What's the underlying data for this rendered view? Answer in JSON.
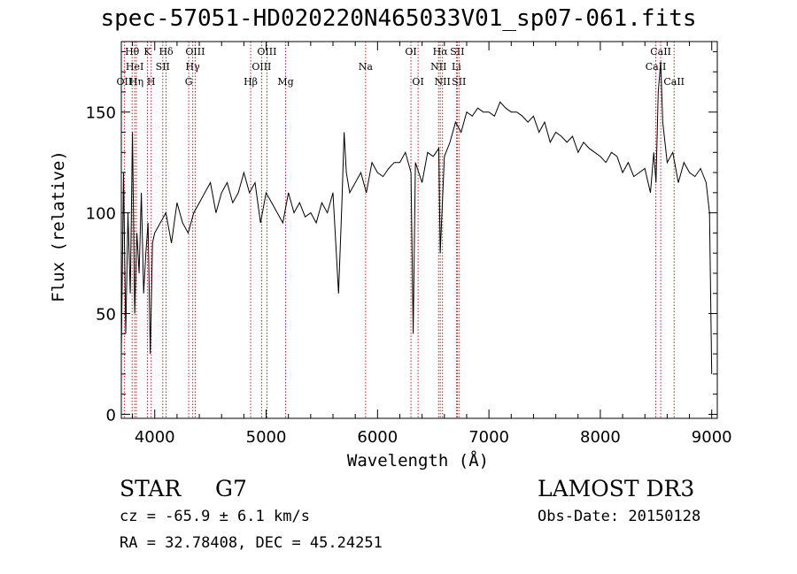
{
  "chart_data": {
    "type": "line",
    "title": "spec-57051-HD020220N465033V01_sp07-061.fits",
    "xlabel": "Wavelength (Å)",
    "ylabel": "Flux (relative)",
    "xlim": [
      3700,
      9050
    ],
    "ylim": [
      -2,
      185
    ],
    "xticks": [
      4000,
      5000,
      6000,
      7000,
      8000,
      9000
    ],
    "yticks": [
      0,
      50,
      100,
      150
    ],
    "series": [
      {
        "name": "flux",
        "x": [
          3700,
          3720,
          3740,
          3760,
          3780,
          3800,
          3820,
          3840,
          3860,
          3880,
          3900,
          3920,
          3940,
          3960,
          3980,
          4000,
          4050,
          4100,
          4150,
          4200,
          4250,
          4300,
          4350,
          4400,
          4450,
          4500,
          4550,
          4600,
          4650,
          4700,
          4750,
          4800,
          4850,
          4900,
          4950,
          5000,
          5050,
          5100,
          5150,
          5200,
          5250,
          5300,
          5350,
          5400,
          5450,
          5500,
          5550,
          5600,
          5650,
          5680,
          5700,
          5720,
          5750,
          5800,
          5850,
          5900,
          5950,
          6000,
          6050,
          6100,
          6150,
          6200,
          6250,
          6300,
          6320,
          6340,
          6400,
          6450,
          6500,
          6550,
          6563,
          6600,
          6650,
          6700,
          6750,
          6800,
          6850,
          6900,
          6950,
          7000,
          7050,
          7100,
          7150,
          7200,
          7250,
          7300,
          7350,
          7400,
          7450,
          7500,
          7550,
          7600,
          7650,
          7700,
          7750,
          7800,
          7850,
          7900,
          7950,
          8000,
          8050,
          8100,
          8150,
          8200,
          8250,
          8300,
          8350,
          8400,
          8450,
          8480,
          8500,
          8520,
          8542,
          8560,
          8600,
          8650,
          8700,
          8750,
          8800,
          8850,
          8900,
          8950,
          8980,
          9000
        ],
        "values": [
          30,
          120,
          40,
          100,
          60,
          140,
          50,
          90,
          70,
          110,
          60,
          80,
          95,
          30,
          85,
          90,
          95,
          100,
          85,
          105,
          95,
          90,
          100,
          105,
          110,
          115,
          100,
          110,
          115,
          105,
          110,
          120,
          110,
          115,
          95,
          110,
          105,
          100,
          95,
          110,
          100,
          105,
          98,
          100,
          95,
          105,
          100,
          110,
          60,
          105,
          140,
          120,
          110,
          115,
          120,
          110,
          125,
          120,
          118,
          122,
          125,
          125,
          130,
          120,
          40,
          125,
          115,
          130,
          128,
          132,
          80,
          128,
          135,
          145,
          140,
          150,
          148,
          152,
          150,
          150,
          148,
          155,
          152,
          150,
          150,
          148,
          145,
          148,
          140,
          145,
          135,
          140,
          138,
          135,
          138,
          130,
          135,
          132,
          130,
          128,
          125,
          130,
          128,
          120,
          125,
          118,
          120,
          122,
          110,
          130,
          115,
          160,
          175,
          145,
          125,
          130,
          115,
          125,
          120,
          118,
          122,
          115,
          100,
          20
        ]
      }
    ],
    "lines": [
      {
        "name": "OII",
        "wl": 3727,
        "label": "OII",
        "row": 2
      },
      {
        "name": "H9",
        "wl": 3797,
        "label": "Hθ",
        "row": 0
      },
      {
        "name": "HeI",
        "wl": 3820,
        "label": "HeI",
        "row": 1
      },
      {
        "name": "Heta",
        "wl": 3835,
        "label": "Hη",
        "row": 2
      },
      {
        "name": "K",
        "wl": 3934,
        "label": "K",
        "row": 0
      },
      {
        "name": "H",
        "wl": 3968,
        "label": "H",
        "row": 2
      },
      {
        "name": "SII4072",
        "wl": 4072,
        "label": "SII",
        "row": 1
      },
      {
        "name": "Hd",
        "wl": 4102,
        "label": "Hδ",
        "row": 0
      },
      {
        "name": "G",
        "wl": 4305,
        "label": "G",
        "row": 2
      },
      {
        "name": "Hg",
        "wl": 4341,
        "label": "Hγ",
        "row": 1
      },
      {
        "name": "OIII4363",
        "wl": 4363,
        "label": "OIII",
        "row": 0
      },
      {
        "name": "Hb",
        "wl": 4861,
        "label": "Hβ",
        "row": 2
      },
      {
        "name": "OIII4959",
        "wl": 4959,
        "label": "OIII",
        "row": 1
      },
      {
        "name": "OIII5007",
        "wl": 5007,
        "label": "OIII",
        "row": 0
      },
      {
        "name": "Mg",
        "wl": 5175,
        "label": "Mg",
        "row": 2
      },
      {
        "name": "Na",
        "wl": 5893,
        "label": "Na",
        "row": 1
      },
      {
        "name": "OI6300",
        "wl": 6300,
        "label": "OI",
        "row": 0
      },
      {
        "name": "OI6364",
        "wl": 6364,
        "label": "OI",
        "row": 2
      },
      {
        "name": "NII6548",
        "wl": 6548,
        "label": "NII",
        "row": 1
      },
      {
        "name": "Ha",
        "wl": 6563,
        "label": "Hα",
        "row": 0
      },
      {
        "name": "NII6583",
        "wl": 6583,
        "label": "NII",
        "row": 2
      },
      {
        "name": "Li",
        "wl": 6708,
        "label": "Li",
        "row": 1
      },
      {
        "name": "SII6716",
        "wl": 6716,
        "label": "SII",
        "row": 0
      },
      {
        "name": "SII6731",
        "wl": 6731,
        "label": "SII",
        "row": 2
      },
      {
        "name": "CaII8498",
        "wl": 8498,
        "label": "CaII",
        "row": 1
      },
      {
        "name": "CaII8542",
        "wl": 8542,
        "label": "CaII",
        "row": 0
      },
      {
        "name": "CaII8662",
        "wl": 8662,
        "label": "CaII",
        "row": 2
      }
    ]
  },
  "info": {
    "class": "STAR",
    "subclass": "G7",
    "survey": "LAMOST DR3",
    "cz": "cz = -65.9 ± 6.1 km/s",
    "obsdate": "Obs-Date: 20150128",
    "radec": "RA =  32.78408, DEC =  45.24251"
  },
  "colors": {
    "line_marker": "#b22222",
    "spectrum": "#000000",
    "axes": "#000000"
  }
}
